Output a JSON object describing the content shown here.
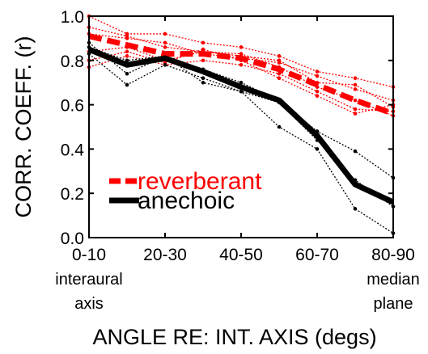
{
  "chart_data": {
    "type": "line",
    "xlabel": "ANGLE RE: INT. AXIS (degs)",
    "ylabel": "CORR. COEFF. (r)",
    "x": [
      1,
      2,
      3,
      4,
      5,
      6,
      7,
      8,
      9
    ],
    "xticks": [
      {
        "x": 1,
        "label": "0-10"
      },
      {
        "x": 3,
        "label": "20-30"
      },
      {
        "x": 5,
        "label": "40-50"
      },
      {
        "x": 7,
        "label": "60-70"
      },
      {
        "x": 9,
        "label": "80-90"
      }
    ],
    "xlim": [
      1,
      9
    ],
    "yticks": [
      "0.0",
      "0.2",
      "0.4",
      "0.6",
      "0.8",
      "1.0"
    ],
    "ylim": [
      0,
      1
    ],
    "x_annotations": {
      "left": [
        "interaural",
        "axis"
      ],
      "right": [
        "median",
        "plane"
      ]
    },
    "legend_position": "bottom-left",
    "colors": {
      "reverberant": "#ff0000",
      "anechoic": "#000000"
    },
    "series": [
      {
        "name": "reverberant",
        "style": "thick-dashed",
        "color": "#ff0000",
        "values": [
          0.91,
          0.87,
          0.83,
          0.83,
          0.81,
          0.76,
          0.69,
          0.62,
          0.56
        ]
      },
      {
        "name": "anechoic",
        "style": "thick-solid",
        "color": "#000000",
        "values": [
          0.85,
          0.78,
          0.81,
          0.75,
          0.68,
          0.62,
          0.46,
          0.24,
          0.16
        ]
      },
      {
        "style": "thin-dotted",
        "color": "#ff0000",
        "values": [
          1.0,
          0.92,
          0.92,
          0.88,
          0.86,
          0.82,
          0.75,
          0.72,
          0.68
        ]
      },
      {
        "style": "thin-dotted",
        "color": "#ff0000",
        "values": [
          0.92,
          0.9,
          0.88,
          0.83,
          0.81,
          0.79,
          0.73,
          0.67,
          0.62
        ]
      },
      {
        "style": "thin-dotted",
        "color": "#ff0000",
        "values": [
          0.84,
          0.86,
          0.8,
          0.84,
          0.83,
          0.77,
          0.68,
          0.62,
          0.55
        ]
      },
      {
        "style": "thin-dotted",
        "color": "#ff0000",
        "values": [
          0.8,
          0.84,
          0.79,
          0.85,
          0.8,
          0.72,
          0.64,
          0.56,
          0.6
        ]
      },
      {
        "style": "thin-dotted",
        "color": "#ff0000",
        "values": [
          0.77,
          0.82,
          0.78,
          0.8,
          0.78,
          0.74,
          0.66,
          0.58,
          0.57
        ]
      },
      {
        "style": "thin-dotted",
        "color": "#ff0000",
        "values": [
          0.95,
          0.91,
          0.86,
          0.84,
          0.82,
          0.8,
          0.7,
          0.69,
          0.59
        ]
      },
      {
        "style": "thin-dotted",
        "color": "#000000",
        "values": [
          0.86,
          0.8,
          0.82,
          0.76,
          0.7,
          0.62,
          0.48,
          0.39,
          0.27
        ]
      },
      {
        "style": "thin-dotted",
        "color": "#000000",
        "values": [
          0.83,
          0.69,
          0.78,
          0.72,
          0.66,
          0.5,
          0.4,
          0.13,
          0.02
        ]
      },
      {
        "style": "thin-dotted",
        "color": "#000000",
        "values": [
          0.88,
          0.74,
          0.82,
          0.7,
          0.66,
          0.61,
          0.44,
          0.26,
          0.14
        ]
      }
    ]
  }
}
